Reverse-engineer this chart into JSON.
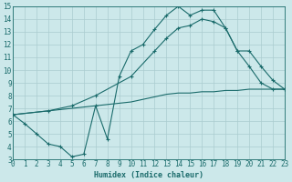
{
  "xlabel": "Humidex (Indice chaleur)",
  "bg_color": "#cce8ea",
  "grid_color": "#aacccf",
  "line_color": "#1a6b6b",
  "xlim": [
    0,
    23
  ],
  "ylim": [
    3,
    15
  ],
  "xticks": [
    0,
    1,
    2,
    3,
    4,
    5,
    6,
    7,
    8,
    9,
    10,
    11,
    12,
    13,
    14,
    15,
    16,
    17,
    18,
    19,
    20,
    21,
    22,
    23
  ],
  "yticks": [
    3,
    4,
    5,
    6,
    7,
    8,
    9,
    10,
    11,
    12,
    13,
    14,
    15
  ],
  "line1_x": [
    0,
    1,
    2,
    3,
    4,
    5,
    6,
    7,
    8,
    9,
    10,
    11,
    12,
    13,
    14,
    15,
    16,
    17,
    18,
    19,
    20,
    21,
    22,
    23
  ],
  "line1_y": [
    6.5,
    5.8,
    5.0,
    4.2,
    4.0,
    3.2,
    3.4,
    7.2,
    4.6,
    9.5,
    11.5,
    12.0,
    13.2,
    14.3,
    15.0,
    14.3,
    14.7,
    14.7,
    13.3,
    11.5,
    10.3,
    9.0,
    8.5,
    8.5
  ],
  "line2_x": [
    0,
    1,
    2,
    3,
    4,
    5,
    6,
    7,
    8,
    9,
    10,
    11,
    12,
    13,
    14,
    15,
    16,
    17,
    18,
    19,
    20,
    21,
    22,
    23
  ],
  "line2_y": [
    6.5,
    6.6,
    6.7,
    6.8,
    6.9,
    7.0,
    7.1,
    7.2,
    7.3,
    7.4,
    7.5,
    7.7,
    7.9,
    8.1,
    8.2,
    8.2,
    8.3,
    8.3,
    8.4,
    8.4,
    8.5,
    8.5,
    8.5,
    8.5
  ],
  "line3_x": [
    0,
    3,
    5,
    7,
    10,
    12,
    13,
    14,
    15,
    16,
    17,
    18,
    19,
    20,
    21,
    22,
    23
  ],
  "line3_y": [
    6.5,
    6.8,
    7.2,
    8.0,
    9.5,
    11.5,
    12.5,
    13.3,
    13.5,
    14.0,
    13.8,
    13.3,
    11.5,
    11.5,
    10.3,
    9.2,
    8.5
  ]
}
